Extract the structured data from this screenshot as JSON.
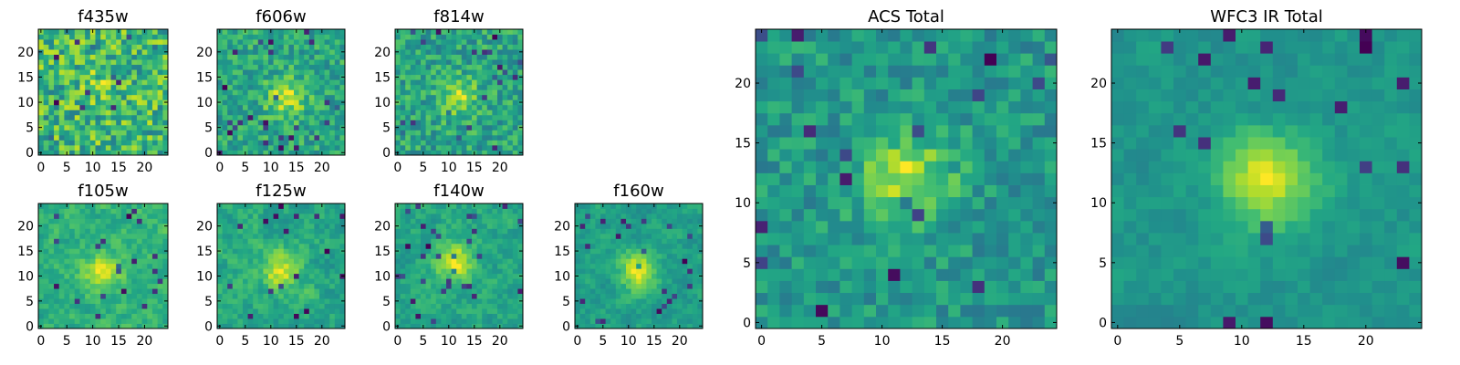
{
  "chart_data": [
    {
      "type": "heatmap",
      "title": "f435w",
      "xticks": [
        "0",
        "5",
        "10",
        "15",
        "20"
      ],
      "yticks": [
        "0",
        "5",
        "10",
        "15",
        "20"
      ],
      "xlim": [
        -0.5,
        24.5
      ],
      "ylim": [
        -0.5,
        24.5
      ],
      "colormap": "viridis",
      "grid": false,
      "seed": 11,
      "peak": [
        12,
        14
      ],
      "signal": 0.15,
      "noise": 0.6,
      "smooth": 0,
      "z": null
    },
    {
      "type": "heatmap",
      "title": "f606w",
      "xticks": [
        "0",
        "5",
        "10",
        "15",
        "20"
      ],
      "yticks": [
        "0",
        "5",
        "10",
        "15",
        "20"
      ],
      "xlim": [
        -0.5,
        24.5
      ],
      "ylim": [
        -0.5,
        24.5
      ],
      "colormap": "viridis",
      "grid": false,
      "seed": 23,
      "peak": [
        13,
        11
      ],
      "signal": 0.5,
      "noise": 0.45,
      "smooth": 0,
      "z": null
    },
    {
      "type": "heatmap",
      "title": "f814w",
      "xticks": [
        "0",
        "5",
        "10",
        "15",
        "20"
      ],
      "yticks": [
        "0",
        "5",
        "10",
        "15",
        "20"
      ],
      "xlim": [
        -0.5,
        24.5
      ],
      "ylim": [
        -0.5,
        24.5
      ],
      "colormap": "viridis",
      "grid": false,
      "seed": 37,
      "peak": [
        12,
        11
      ],
      "signal": 0.45,
      "noise": 0.5,
      "smooth": 0,
      "z": null
    },
    {
      "type": "heatmap",
      "title": "f105w",
      "xticks": [
        "0",
        "5",
        "10",
        "15",
        "20"
      ],
      "yticks": [
        "0",
        "5",
        "10",
        "15",
        "20"
      ],
      "xlim": [
        -0.5,
        24.5
      ],
      "ylim": [
        -0.5,
        24.5
      ],
      "colormap": "viridis",
      "grid": false,
      "seed": 41,
      "peak": [
        12,
        11
      ],
      "signal": 0.4,
      "noise": 0.4,
      "smooth": 1,
      "z": null
    },
    {
      "type": "heatmap",
      "title": "f125w",
      "xticks": [
        "0",
        "5",
        "10",
        "15",
        "20"
      ],
      "yticks": [
        "0",
        "5",
        "10",
        "15",
        "20"
      ],
      "xlim": [
        -0.5,
        24.5
      ],
      "ylim": [
        -0.5,
        24.5
      ],
      "colormap": "viridis",
      "grid": false,
      "seed": 53,
      "peak": [
        12,
        11
      ],
      "signal": 0.4,
      "noise": 0.4,
      "smooth": 1,
      "z": null
    },
    {
      "type": "heatmap",
      "title": "f140w",
      "xticks": [
        "0",
        "5",
        "10",
        "15",
        "20"
      ],
      "yticks": [
        "0",
        "5",
        "10",
        "15",
        "20"
      ],
      "xlim": [
        -0.5,
        24.5
      ],
      "ylim": [
        -0.5,
        24.5
      ],
      "colormap": "viridis",
      "grid": false,
      "seed": 67,
      "peak": [
        11,
        13
      ],
      "signal": 0.5,
      "noise": 0.4,
      "smooth": 1,
      "z": null
    },
    {
      "type": "heatmap",
      "title": "f160w",
      "xticks": [
        "0",
        "5",
        "10",
        "15",
        "20"
      ],
      "yticks": [
        "0",
        "5",
        "10",
        "15",
        "20"
      ],
      "xlim": [
        -0.5,
        24.5
      ],
      "ylim": [
        -0.5,
        24.5
      ],
      "colormap": "viridis",
      "grid": false,
      "seed": 71,
      "peak": [
        12,
        11
      ],
      "signal": 0.6,
      "noise": 0.4,
      "smooth": 1,
      "z": null
    },
    {
      "type": "heatmap",
      "title": "ACS Total",
      "xticks": [
        "0",
        "5",
        "10",
        "15",
        "20"
      ],
      "yticks": [
        "0",
        "5",
        "10",
        "15",
        "20"
      ],
      "xlim": [
        -0.5,
        24.5
      ],
      "ylim": [
        -0.5,
        24.5
      ],
      "colormap": "viridis",
      "grid": false,
      "seed": 83,
      "peak": [
        12,
        12
      ],
      "signal": 0.6,
      "noise": 0.4,
      "smooth": 0,
      "z": null
    },
    {
      "type": "heatmap",
      "title": "WFC3 IR Total",
      "xticks": [
        "0",
        "5",
        "10",
        "15",
        "20"
      ],
      "yticks": [
        "0",
        "5",
        "10",
        "15",
        "20"
      ],
      "xlim": [
        -0.5,
        24.5
      ],
      "ylim": [
        -0.5,
        24.5
      ],
      "colormap": "viridis",
      "grid": false,
      "seed": 97,
      "peak": [
        12,
        12
      ],
      "signal": 0.65,
      "noise": 0.3,
      "smooth": 1,
      "z": null
    }
  ]
}
